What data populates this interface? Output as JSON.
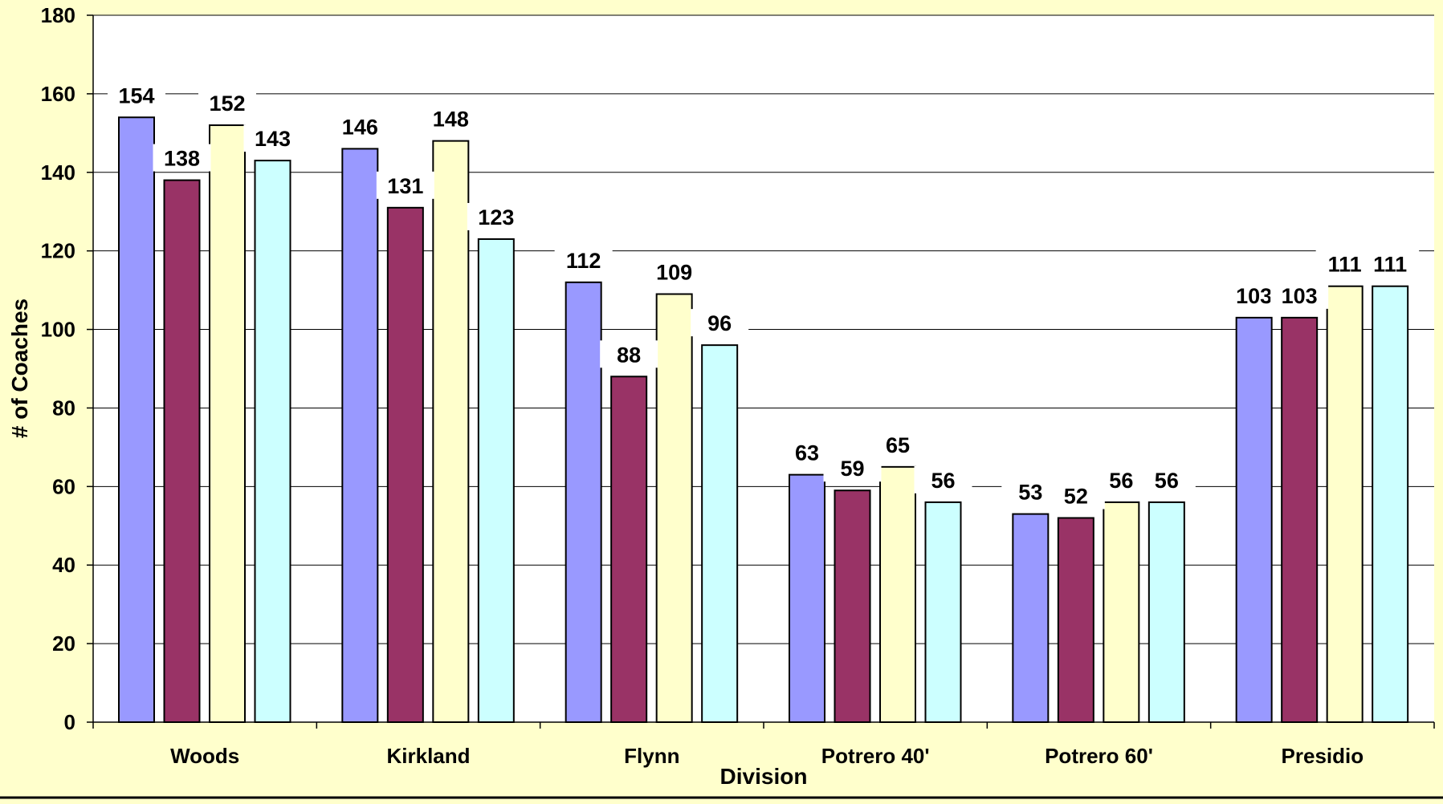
{
  "chart_data": {
    "type": "bar",
    "title": "",
    "xlabel": "Division",
    "ylabel": "# of Coaches",
    "ylim": [
      0,
      180
    ],
    "yticks": [
      0,
      20,
      40,
      60,
      80,
      100,
      120,
      140,
      160,
      180
    ],
    "grid": true,
    "legend": "none",
    "categories": [
      "Woods",
      "Kirkland",
      "Flynn",
      "Potrero 40'",
      "Potrero 60'",
      "Presidio"
    ],
    "series": [
      {
        "values": [
          154,
          146,
          112,
          63,
          53,
          103
        ],
        "color": "#9999ff"
      },
      {
        "values": [
          138,
          131,
          88,
          59,
          52,
          103
        ],
        "color": "#993366"
      },
      {
        "values": [
          152,
          148,
          109,
          65,
          56,
          111
        ],
        "color": "#ffffcc"
      },
      {
        "values": [
          143,
          123,
          96,
          56,
          56,
          111
        ],
        "color": "#ccffff"
      }
    ]
  },
  "colors": {
    "page_background": "#ffffcc",
    "plot_background": "#ffffff",
    "gridline": "#000000",
    "bar_border": "#000000"
  }
}
